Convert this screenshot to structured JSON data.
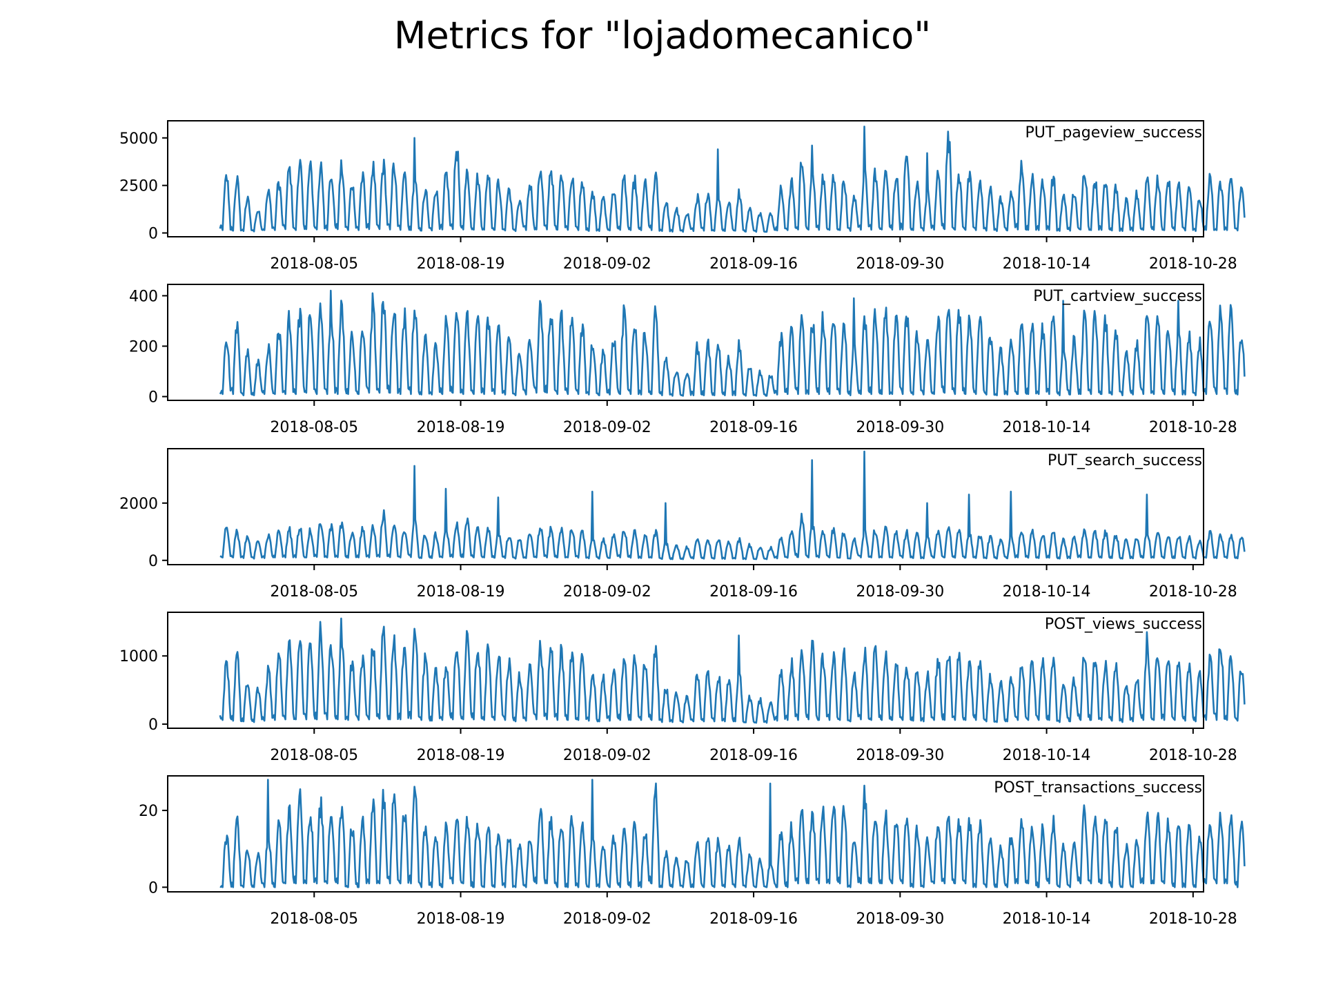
{
  "title": "Metrics for \"lojadomecanico\"",
  "chart_data": [
    {
      "type": "line",
      "label": "PUT_pageview_success",
      "color": "#1f77b4",
      "x_ticks": [
        "2018-08-05",
        "2018-08-19",
        "2018-09-02",
        "2018-09-16",
        "2018-09-30",
        "2018-10-14",
        "2018-10-28"
      ],
      "y_ticks": [
        0,
        2500,
        5000
      ],
      "ylim": [
        -200,
        5900
      ],
      "xrange": [
        "2018-07-22",
        "2018-10-29"
      ],
      "data_range": [
        "2018-07-27",
        "2018-10-26"
      ],
      "daily_peak": [
        3300,
        3100,
        2000,
        1300,
        2400,
        3000,
        3800,
        4200,
        3900,
        3800,
        3600,
        3900,
        2900,
        3300,
        3900,
        4000,
        3900,
        3700,
        3200,
        2500,
        2600,
        3500,
        5000,
        3500,
        3300,
        3500,
        3000,
        2600,
        1800,
        2900,
        3800,
        3800,
        3600,
        3300,
        3000,
        2300,
        2000,
        2500,
        3300,
        3100,
        2900,
        3300,
        1800,
        1400,
        1200,
        2100,
        2400,
        2300,
        1800,
        2400,
        1400,
        1200,
        1100,
        2600,
        3000,
        4400,
        3400,
        3300,
        3300,
        3000,
        2200,
        3400,
        3500,
        3600,
        3400,
        4600,
        2900,
        2400,
        3400,
        5600,
        3400,
        3300,
        3000,
        2500,
        2000,
        2500,
        4200,
        3200,
        3100,
        3300,
        2200,
        2400,
        3800,
        3100,
        3200,
        2600,
        1900,
        2300,
        3300,
        3200,
        3100,
        2800,
        2600,
        2000,
        3200,
        2900,
        3100,
        2500
      ],
      "daily_trough": [
        150,
        120,
        100,
        80,
        150,
        150,
        200,
        150,
        200,
        180,
        150,
        200,
        150,
        150,
        200,
        200,
        180,
        160,
        150,
        120,
        130,
        180,
        200,
        180,
        170,
        170,
        160,
        130,
        100,
        150,
        180,
        180,
        170,
        160,
        150,
        110,
        100,
        130,
        160,
        150,
        140,
        150,
        100,
        70,
        60,
        100,
        120,
        110,
        100,
        120,
        70,
        60,
        60,
        130,
        150,
        180,
        170,
        160,
        160,
        150,
        110,
        170,
        170,
        180,
        170,
        180,
        150,
        120,
        170,
        200,
        170,
        160,
        150,
        120,
        100,
        130,
        180,
        160,
        150,
        160,
        110,
        120,
        180,
        150,
        160,
        130,
        100,
        110,
        160,
        160,
        150,
        140,
        130,
        100,
        160,
        150,
        150,
        130
      ],
      "spikes": [
        {
          "x": "2018-08-14",
          "y": 5000
        },
        {
          "x": "2018-09-12",
          "y": 4400
        },
        {
          "x": "2018-09-21",
          "y": 4600
        },
        {
          "x": "2018-09-26",
          "y": 5600
        },
        {
          "x": "2018-10-02",
          "y": 4200
        },
        {
          "x": "2018-10-11",
          "y": 3800
        }
      ]
    },
    {
      "type": "line",
      "label": "PUT_cartview_success",
      "color": "#1f77b4",
      "x_ticks": [
        "2018-08-05",
        "2018-08-19",
        "2018-09-02",
        "2018-09-16",
        "2018-09-30",
        "2018-10-14",
        "2018-10-28"
      ],
      "y_ticks": [
        0,
        200,
        400
      ],
      "ylim": [
        -15,
        445
      ],
      "xrange": [
        "2018-07-22",
        "2018-10-29"
      ],
      "data_range": [
        "2018-07-27",
        "2018-10-26"
      ],
      "daily_peak": [
        250,
        330,
        200,
        150,
        220,
        300,
        350,
        370,
        360,
        380,
        360,
        390,
        280,
        310,
        380,
        420,
        400,
        360,
        410,
        260,
        240,
        330,
        380,
        360,
        340,
        330,
        300,
        270,
        200,
        250,
        400,
        380,
        350,
        340,
        320,
        240,
        200,
        260,
        370,
        330,
        290,
        370,
        170,
        120,
        110,
        220,
        240,
        230,
        170,
        230,
        130,
        110,
        100,
        260,
        290,
        340,
        330,
        350,
        370,
        330,
        220,
        350,
        360,
        360,
        340,
        370,
        280,
        240,
        350,
        390,
        380,
        360,
        340,
        270,
        200,
        250,
        330,
        310,
        300,
        380,
        220,
        250,
        350,
        350,
        330,
        280,
        200,
        240,
        360,
        370,
        320,
        290,
        280,
        240,
        330,
        380,
        390,
        280
      ],
      "daily_trough": [
        10,
        10,
        5,
        5,
        10,
        10,
        10,
        10,
        15,
        10,
        10,
        10,
        10,
        10,
        15,
        15,
        15,
        10,
        10,
        8,
        8,
        10,
        15,
        10,
        10,
        10,
        10,
        8,
        5,
        8,
        15,
        15,
        10,
        10,
        10,
        8,
        5,
        8,
        10,
        10,
        8,
        10,
        5,
        3,
        3,
        5,
        5,
        5,
        5,
        5,
        3,
        3,
        3,
        8,
        10,
        10,
        10,
        10,
        10,
        10,
        5,
        10,
        10,
        10,
        10,
        10,
        8,
        8,
        10,
        15,
        10,
        10,
        10,
        8,
        5,
        8,
        10,
        10,
        10,
        10,
        5,
        8,
        10,
        10,
        10,
        8,
        5,
        8,
        10,
        10,
        10,
        8,
        8,
        5,
        10,
        10,
        10,
        8
      ],
      "spikes": [
        {
          "x": "2018-08-06",
          "y": 420
        },
        {
          "x": "2018-08-10",
          "y": 410
        },
        {
          "x": "2018-09-25",
          "y": 390
        },
        {
          "x": "2018-10-15",
          "y": 380
        },
        {
          "x": "2018-10-26",
          "y": 380
        }
      ]
    },
    {
      "type": "line",
      "label": "PUT_search_success",
      "color": "#1f77b4",
      "x_ticks": [
        "2018-08-05",
        "2018-08-19",
        "2018-09-02",
        "2018-09-16",
        "2018-09-30",
        "2018-10-14",
        "2018-10-28"
      ],
      "y_ticks": [
        0,
        2000
      ],
      "ylim": [
        -150,
        3900
      ],
      "xrange": [
        "2018-07-22",
        "2018-10-29"
      ],
      "data_range": [
        "2018-07-27",
        "2018-10-26"
      ],
      "daily_peak": [
        1300,
        1100,
        900,
        800,
        1000,
        1100,
        1200,
        1300,
        1200,
        1500,
        1300,
        1400,
        1100,
        1200,
        1300,
        1800,
        1400,
        1200,
        1500,
        1000,
        1000,
        1200,
        1400,
        1500,
        1300,
        1200,
        1100,
        1000,
        800,
        1000,
        1300,
        1200,
        1200,
        1200,
        1100,
        900,
        800,
        1000,
        1200,
        1100,
        1000,
        1100,
        700,
        600,
        500,
        800,
        800,
        800,
        700,
        800,
        600,
        500,
        500,
        900,
        1100,
        1700,
        1400,
        1200,
        1200,
        1100,
        800,
        1200,
        1200,
        1200,
        1100,
        1100,
        1000,
        900,
        1100,
        1200,
        1100,
        1100,
        1000,
        900,
        800,
        900,
        1200,
        1100,
        1000,
        1100,
        800,
        900,
        1200,
        1100,
        1100,
        1000,
        800,
        900,
        1100,
        1100,
        1000,
        1000,
        900,
        800,
        1100,
        1000,
        1000,
        900
      ],
      "daily_trough": [
        100,
        100,
        80,
        60,
        80,
        100,
        100,
        100,
        100,
        120,
        100,
        110,
        90,
        100,
        100,
        120,
        110,
        100,
        110,
        80,
        80,
        100,
        110,
        110,
        100,
        100,
        90,
        80,
        60,
        80,
        100,
        100,
        100,
        100,
        90,
        70,
        60,
        80,
        100,
        90,
        80,
        90,
        50,
        40,
        40,
        60,
        60,
        60,
        50,
        60,
        40,
        40,
        40,
        70,
        90,
        110,
        100,
        100,
        100,
        90,
        60,
        100,
        100,
        100,
        90,
        90,
        80,
        70,
        90,
        100,
        90,
        90,
        80,
        70,
        60,
        70,
        100,
        90,
        80,
        90,
        60,
        70,
        100,
        90,
        90,
        80,
        60,
        70,
        90,
        90,
        80,
        80,
        70,
        60,
        90,
        80,
        80,
        70
      ],
      "spikes": [
        {
          "x": "2018-08-14",
          "y": 3300
        },
        {
          "x": "2018-08-17",
          "y": 2500
        },
        {
          "x": "2018-08-22",
          "y": 2200
        },
        {
          "x": "2018-08-31",
          "y": 2400
        },
        {
          "x": "2018-09-07",
          "y": 2000
        },
        {
          "x": "2018-09-21",
          "y": 3500
        },
        {
          "x": "2018-09-26",
          "y": 3800
        },
        {
          "x": "2018-10-02",
          "y": 2000
        },
        {
          "x": "2018-10-06",
          "y": 2300
        },
        {
          "x": "2018-10-10",
          "y": 2400
        },
        {
          "x": "2018-10-23",
          "y": 2300
        }
      ]
    },
    {
      "type": "line",
      "label": "POST_views_success",
      "color": "#1f77b4",
      "x_ticks": [
        "2018-08-05",
        "2018-08-19",
        "2018-09-02",
        "2018-09-16",
        "2018-09-30",
        "2018-10-14",
        "2018-10-28"
      ],
      "y_ticks": [
        0,
        1000
      ],
      "ylim": [
        -60,
        1640
      ],
      "xrange": [
        "2018-07-22",
        "2018-10-29"
      ],
      "data_range": [
        "2018-07-27",
        "2018-10-26"
      ],
      "daily_peak": [
        1000,
        1100,
        700,
        600,
        900,
        1100,
        1300,
        1350,
        1300,
        1350,
        1300,
        1380,
        1000,
        1100,
        1300,
        1500,
        1400,
        1300,
        1550,
        1100,
        900,
        1000,
        1300,
        1400,
        1250,
        1200,
        1150,
        1050,
        800,
        900,
        1250,
        1250,
        1200,
        1200,
        1100,
        850,
        750,
        900,
        1100,
        1100,
        1050,
        1200,
        600,
        500,
        450,
        800,
        850,
        800,
        700,
        800,
        450,
        400,
        350,
        900,
        1000,
        1200,
        1300,
        1100,
        1150,
        1150,
        800,
        1250,
        1200,
        1100,
        1000,
        1000,
        900,
        800,
        1050,
        1200,
        1100,
        1050,
        1000,
        800,
        650,
        800,
        1050,
        1050,
        1000,
        1050,
        650,
        750,
        1150,
        1100,
        1000,
        950,
        650,
        750,
        1200,
        1200,
        1100,
        1000,
        950,
        850,
        1100,
        1300,
        1100,
        900
      ],
      "daily_trough": [
        60,
        50,
        40,
        30,
        50,
        60,
        70,
        70,
        70,
        70,
        70,
        70,
        60,
        60,
        70,
        80,
        70,
        70,
        80,
        60,
        50,
        60,
        70,
        70,
        70,
        60,
        60,
        60,
        40,
        50,
        70,
        70,
        60,
        60,
        60,
        50,
        40,
        50,
        60,
        60,
        60,
        60,
        30,
        30,
        25,
        40,
        40,
        40,
        40,
        40,
        25,
        20,
        20,
        50,
        60,
        60,
        70,
        60,
        60,
        60,
        40,
        70,
        60,
        60,
        60,
        60,
        50,
        40,
        60,
        60,
        60,
        60,
        60,
        40,
        30,
        40,
        60,
        60,
        60,
        60,
        30,
        40,
        60,
        60,
        60,
        50,
        30,
        40,
        60,
        60,
        60,
        60,
        50,
        40,
        60,
        60,
        60,
        50
      ],
      "spikes": [
        {
          "x": "2018-08-05",
          "y": 1500
        },
        {
          "x": "2018-08-07",
          "y": 1550
        },
        {
          "x": "2018-09-14",
          "y": 1300
        },
        {
          "x": "2018-10-23",
          "y": 1350
        }
      ]
    },
    {
      "type": "line",
      "label": "POST_transactions_success",
      "color": "#1f77b4",
      "x_ticks": [
        "2018-08-05",
        "2018-08-19",
        "2018-09-02",
        "2018-09-16",
        "2018-09-30",
        "2018-10-14",
        "2018-10-28"
      ],
      "y_ticks": [
        0,
        20
      ],
      "ylim": [
        -1.2,
        29
      ],
      "xrange": [
        "2018-07-22",
        "2018-10-29"
      ],
      "data_range": [
        "2018-07-27",
        "2018-10-26"
      ],
      "daily_peak": [
        15,
        20,
        12,
        10,
        15,
        18,
        22,
        28,
        22,
        24,
        22,
        24,
        18,
        20,
        24,
        26,
        25,
        22,
        27,
        18,
        16,
        18,
        20,
        20,
        19,
        18,
        17,
        16,
        12,
        14,
        22,
        20,
        19,
        19,
        18,
        14,
        12,
        15,
        19,
        18,
        17,
        28,
        10,
        9,
        8,
        14,
        15,
        14,
        12,
        15,
        9,
        8,
        7,
        16,
        18,
        22,
        22,
        23,
        25,
        22,
        15,
        27,
        21,
        21,
        20,
        21,
        17,
        14,
        19,
        20,
        19,
        19,
        18,
        15,
        12,
        15,
        19,
        18,
        17,
        19,
        12,
        14,
        22,
        21,
        20,
        18,
        12,
        14,
        20,
        20,
        19,
        18,
        17,
        15,
        19,
        20,
        20,
        19
      ],
      "daily_trough": [
        0,
        0,
        0,
        0,
        0,
        0,
        1,
        1,
        1,
        1,
        1,
        1,
        0,
        0,
        1,
        1,
        1,
        1,
        1,
        0,
        0,
        0,
        1,
        1,
        0,
        0,
        0,
        0,
        0,
        0,
        1,
        1,
        0,
        0,
        0,
        0,
        0,
        0,
        0,
        0,
        0,
        1,
        0,
        0,
        0,
        0,
        0,
        0,
        0,
        0,
        0,
        0,
        0,
        0,
        0,
        1,
        1,
        1,
        1,
        1,
        0,
        1,
        1,
        1,
        1,
        1,
        0,
        0,
        1,
        1,
        1,
        1,
        0,
        0,
        0,
        0,
        1,
        1,
        0,
        1,
        0,
        0,
        1,
        1,
        1,
        0,
        0,
        0,
        1,
        1,
        1,
        0,
        0,
        0,
        1,
        1,
        1,
        0
      ],
      "spikes": [
        {
          "x": "2018-07-31",
          "y": 28
        },
        {
          "x": "2018-08-31",
          "y": 28
        },
        {
          "x": "2018-09-17",
          "y": 27
        }
      ]
    }
  ]
}
